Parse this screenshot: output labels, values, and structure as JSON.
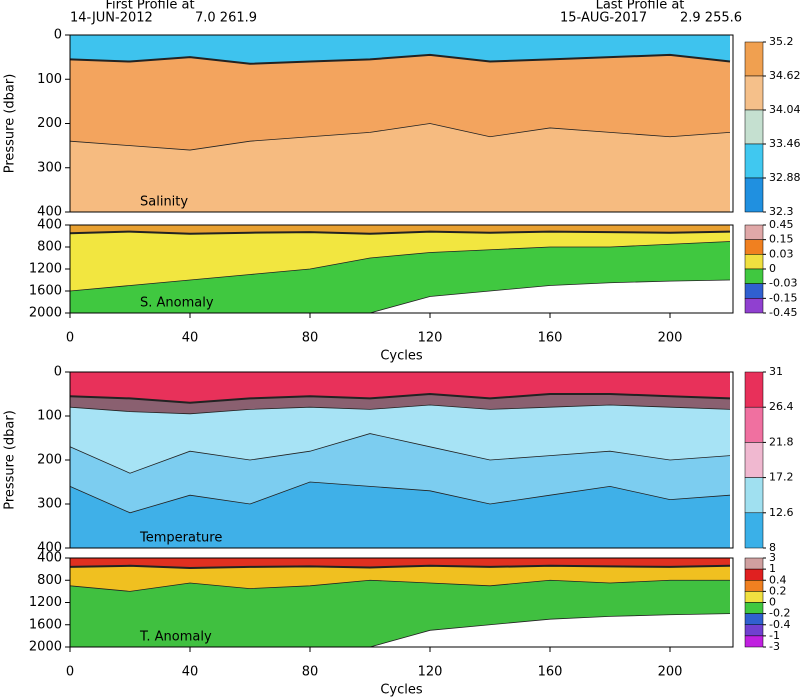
{
  "header": {
    "first_title": "First Profile at",
    "first_date": "14-JUN-2012",
    "first_pos": "7.0  261.9",
    "last_title": "Last Profile at",
    "last_date": "15-AUG-2017",
    "last_pos": "2.9  255.6"
  },
  "chart_data": [
    {
      "type": "section",
      "label": "Salinity",
      "ylabel": "Pressure (dbar)",
      "x": [
        0,
        20,
        40,
        60,
        80,
        100,
        120,
        140,
        160,
        180,
        200,
        220
      ],
      "xlim": [
        0,
        221
      ],
      "ylim": [
        0,
        400
      ],
      "yticks": [
        0,
        100,
        200,
        300,
        400
      ],
      "yreversed": true,
      "bands": [
        {
          "color": "#3ec3ee",
          "values": [
            55,
            60,
            50,
            65,
            60,
            55,
            45,
            60,
            55,
            50,
            45,
            60
          ]
        },
        {
          "color": "#f3a45e",
          "values": [
            240,
            250,
            260,
            240,
            230,
            220,
            200,
            230,
            210,
            220,
            230,
            220
          ]
        },
        {
          "color": "#f6bb80",
          "values": [
            400,
            400,
            400,
            400,
            400,
            400,
            400,
            400,
            400,
            400,
            400,
            400
          ]
        }
      ],
      "colorbar": {
        "ticks": [
          35.2,
          34.62,
          34.04,
          33.46,
          32.88,
          32.3
        ],
        "colors": [
          "#f0a050",
          "#f5c08a",
          "#c5e0d0",
          "#40c8f0",
          "#2090e0"
        ]
      }
    },
    {
      "type": "section",
      "label": "S. Anomaly",
      "xlabel": "Cycles",
      "x": [
        0,
        20,
        40,
        60,
        80,
        100,
        120,
        140,
        160,
        180,
        200,
        220
      ],
      "xlim": [
        0,
        221
      ],
      "xticks": [
        0,
        40,
        80,
        120,
        160,
        200
      ],
      "ylim": [
        400,
        2000
      ],
      "yticks": [
        400,
        800,
        1200,
        1600,
        2000
      ],
      "yreversed": true,
      "bands": [
        {
          "color": "#e8a030",
          "values": [
            550,
            520,
            560,
            540,
            530,
            560,
            520,
            540,
            520,
            530,
            540,
            520
          ]
        },
        {
          "color": "#f2e640",
          "values": [
            1600,
            1500,
            1400,
            1300,
            1200,
            1000,
            900,
            850,
            800,
            800,
            750,
            700
          ]
        },
        {
          "color": "#40c840",
          "values": [
            2000,
            2000,
            2000,
            2000,
            2000,
            2000,
            1700,
            1600,
            1500,
            1450,
            1420,
            1400
          ]
        },
        {
          "color": "#ffffff",
          "values": [
            2000,
            2000,
            2000,
            2000,
            2000,
            2000,
            2000,
            2000,
            2000,
            2000,
            2000,
            2000
          ]
        }
      ],
      "colorbar": {
        "ticks": [
          0.45,
          0.15,
          0.03,
          0,
          -0.03,
          -0.15,
          -0.45
        ],
        "colors": [
          "#e0a8a8",
          "#f08020",
          "#f0e040",
          "#40c840",
          "#3060d0",
          "#9040d0"
        ]
      }
    },
    {
      "type": "section",
      "label": "Temperature",
      "ylabel": "Pressure (dbar)",
      "x": [
        0,
        20,
        40,
        60,
        80,
        100,
        120,
        140,
        160,
        180,
        200,
        220
      ],
      "xlim": [
        0,
        221
      ],
      "ylim": [
        0,
        400
      ],
      "yticks": [
        0,
        100,
        200,
        300,
        400
      ],
      "yreversed": true,
      "bands": [
        {
          "color": "#e8315a",
          "values": [
            55,
            60,
            70,
            60,
            55,
            60,
            50,
            60,
            50,
            50,
            55,
            60
          ]
        },
        {
          "color": "#8a6070",
          "values": [
            80,
            90,
            95,
            85,
            80,
            85,
            75,
            85,
            80,
            75,
            80,
            85
          ]
        },
        {
          "color": "#a7e3f5",
          "values": [
            170,
            230,
            180,
            200,
            180,
            140,
            170,
            200,
            190,
            180,
            200,
            190
          ]
        },
        {
          "color": "#7ccdf0",
          "values": [
            260,
            320,
            280,
            300,
            250,
            260,
            270,
            300,
            280,
            260,
            290,
            280
          ]
        },
        {
          "color": "#3fb0e8",
          "values": [
            400,
            400,
            400,
            400,
            400,
            400,
            400,
            400,
            400,
            400,
            400,
            400
          ]
        }
      ],
      "colorbar": {
        "ticks": [
          31,
          26.4,
          21.8,
          17.2,
          12.6,
          8
        ],
        "colors": [
          "#e8305a",
          "#f070a0",
          "#f0b8d0",
          "#a0e0f0",
          "#3ab0e8"
        ]
      }
    },
    {
      "type": "section",
      "label": "T. Anomaly",
      "xlabel": "Cycles",
      "x": [
        0,
        20,
        40,
        60,
        80,
        100,
        120,
        140,
        160,
        180,
        200,
        220
      ],
      "xlim": [
        0,
        221
      ],
      "xticks": [
        0,
        40,
        80,
        120,
        160,
        200
      ],
      "ylim": [
        400,
        2000
      ],
      "yticks": [
        400,
        800,
        1200,
        1600,
        2000
      ],
      "yreversed": true,
      "bands": [
        {
          "color": "#e03020",
          "values": [
            560,
            540,
            580,
            560,
            550,
            570,
            540,
            560,
            540,
            550,
            560,
            540
          ]
        },
        {
          "color": "#f0c020",
          "values": [
            900,
            1000,
            850,
            950,
            900,
            800,
            850,
            900,
            800,
            850,
            800,
            800
          ]
        },
        {
          "color": "#40c040",
          "values": [
            2000,
            2000,
            2000,
            2000,
            2000,
            2000,
            1700,
            1600,
            1500,
            1450,
            1420,
            1400
          ]
        },
        {
          "color": "#ffffff",
          "values": [
            2000,
            2000,
            2000,
            2000,
            2000,
            2000,
            2000,
            2000,
            2000,
            2000,
            2000,
            2000
          ]
        }
      ],
      "colorbar": {
        "ticks": [
          3,
          1,
          0.4,
          0.2,
          0,
          -0.2,
          -0.4,
          -1,
          -3
        ],
        "colors": [
          "#d0a0a0",
          "#e02020",
          "#f08020",
          "#f0e040",
          "#40c840",
          "#3060d0",
          "#7040d0",
          "#c020e0"
        ]
      }
    }
  ]
}
